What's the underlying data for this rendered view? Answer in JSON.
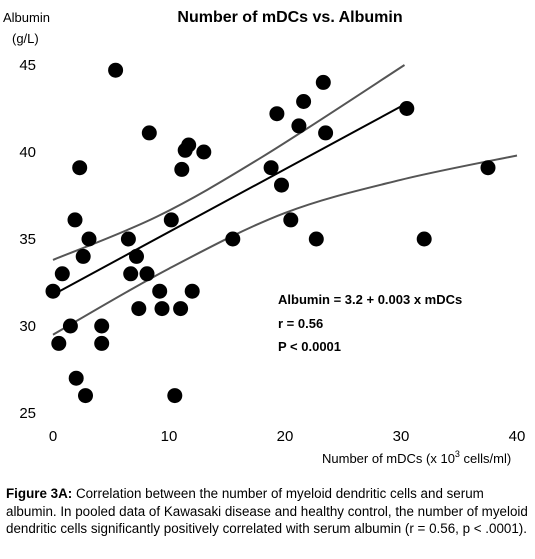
{
  "chart_data": {
    "type": "scatter",
    "title": "Number of mDCs vs. Albumin",
    "xlabel_main": "Number of mDCs (x 10",
    "xlabel_sup": "3",
    "xlabel_end": " cells/ml)",
    "ylabel_line1": "Albumin",
    "ylabel_line2": "(g/L)",
    "xlim": [
      0,
      40
    ],
    "ylim": [
      25,
      45
    ],
    "x_ticks": [
      "0",
      "10",
      "20",
      "30",
      "40"
    ],
    "y_ticks": [
      "25",
      "30",
      "35",
      "40",
      "45"
    ],
    "points": [
      {
        "x": 0,
        "y": 32
      },
      {
        "x": 0.5,
        "y": 29
      },
      {
        "x": 0.8,
        "y": 33
      },
      {
        "x": 1.5,
        "y": 30
      },
      {
        "x": 1.9,
        "y": 36.1
      },
      {
        "x": 2.0,
        "y": 27
      },
      {
        "x": 2.3,
        "y": 39.1
      },
      {
        "x": 2.6,
        "y": 34
      },
      {
        "x": 2.8,
        "y": 26
      },
      {
        "x": 3.1,
        "y": 35
      },
      {
        "x": 4.2,
        "y": 30
      },
      {
        "x": 4.2,
        "y": 29
      },
      {
        "x": 5.4,
        "y": 44.7
      },
      {
        "x": 6.5,
        "y": 35
      },
      {
        "x": 6.7,
        "y": 33
      },
      {
        "x": 7.2,
        "y": 34
      },
      {
        "x": 7.4,
        "y": 31
      },
      {
        "x": 8.1,
        "y": 33
      },
      {
        "x": 8.3,
        "y": 41.1
      },
      {
        "x": 9.2,
        "y": 32
      },
      {
        "x": 9.4,
        "y": 31
      },
      {
        "x": 10.2,
        "y": 36.1
      },
      {
        "x": 10.5,
        "y": 26
      },
      {
        "x": 11.0,
        "y": 31
      },
      {
        "x": 11.1,
        "y": 39
      },
      {
        "x": 11.4,
        "y": 40.1
      },
      {
        "x": 11.7,
        "y": 40.4
      },
      {
        "x": 12.0,
        "y": 32
      },
      {
        "x": 13.0,
        "y": 40
      },
      {
        "x": 15.5,
        "y": 35
      },
      {
        "x": 18.8,
        "y": 39.1
      },
      {
        "x": 19.3,
        "y": 42.2
      },
      {
        "x": 19.7,
        "y": 38.1
      },
      {
        "x": 20.5,
        "y": 36.1
      },
      {
        "x": 21.2,
        "y": 41.5
      },
      {
        "x": 21.6,
        "y": 42.9
      },
      {
        "x": 22.7,
        "y": 35
      },
      {
        "x": 23.3,
        "y": 44
      },
      {
        "x": 23.5,
        "y": 41.1
      },
      {
        "x": 30.5,
        "y": 42.5
      },
      {
        "x": 32.0,
        "y": 35
      },
      {
        "x": 37.5,
        "y": 39.1
      }
    ],
    "regression": {
      "x": [
        0,
        30.5
      ],
      "y": [
        31.8,
        42.8
      ]
    },
    "ci_upper": {
      "x": [
        0,
        9,
        18,
        30.3
      ],
      "y": [
        33.8,
        36.3,
        39.7,
        45
      ]
    },
    "ci_lower": {
      "x": [
        0,
        10,
        20,
        30,
        40
      ],
      "y": [
        29.5,
        33.3,
        36.5,
        38.4,
        39.8
      ]
    },
    "annotation": {
      "equation": "Albumin = 3.2 + 0.003 x mDCs",
      "r": "r = 0.56",
      "p": "P < 0.0001"
    },
    "grid": false,
    "legend": "none"
  },
  "caption": {
    "label": "Figure 3A:",
    "text": " Correlation between the number of myeloid dendritic cells and serum albumin. In pooled data of Kawasaki disease and healthy control, the number of myeloid dendritic cells significantly positively correlated with serum albumin (r = 0.56, p < .0001)."
  }
}
